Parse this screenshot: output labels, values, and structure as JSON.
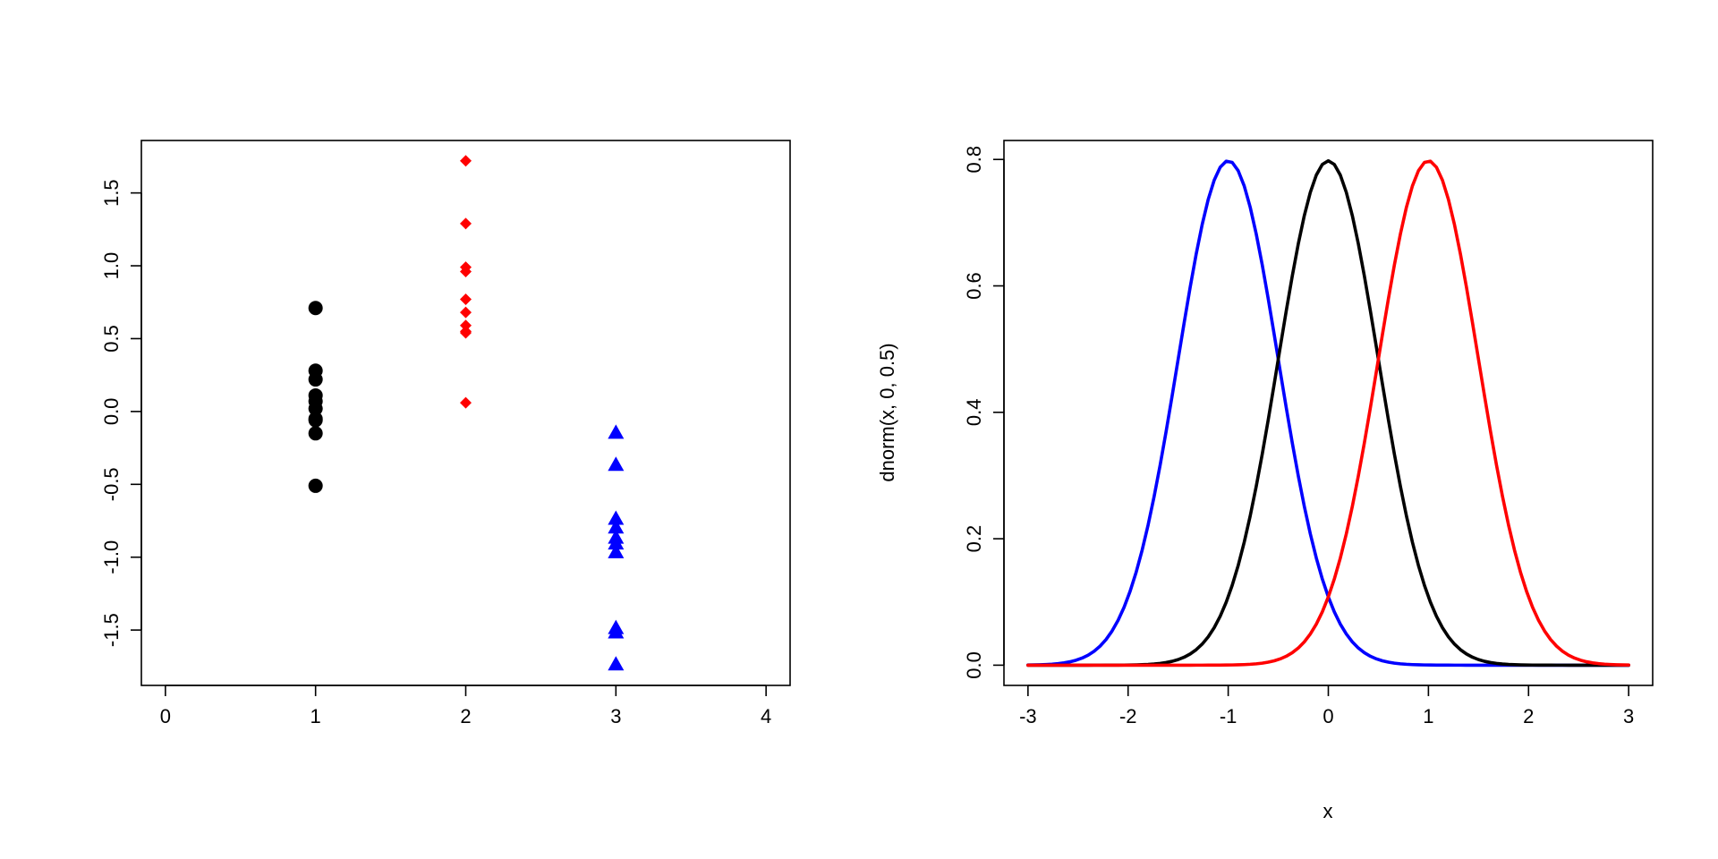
{
  "chart_data": [
    {
      "type": "scatter",
      "title": "",
      "xlabel": "",
      "ylabel": "",
      "xlim": [
        -0.16,
        4.16
      ],
      "ylim": [
        -1.88,
        1.86
      ],
      "xticks": [
        0,
        1,
        2,
        3,
        4
      ],
      "yticks": [
        -1.5,
        -1.0,
        -0.5,
        0.0,
        0.5,
        1.0,
        1.5
      ],
      "xtick_labels": [
        "0",
        "1",
        "2",
        "3",
        "4"
      ],
      "ytick_labels": [
        "-1.5",
        "-1.0",
        "-0.5",
        "0.0",
        "0.5",
        "1.0",
        "1.5"
      ],
      "grid": false,
      "series": [
        {
          "marker": "circle",
          "color": "#000000",
          "x": [
            1,
            1,
            1,
            1,
            1,
            1,
            1,
            1,
            1,
            1
          ],
          "y": [
            0.71,
            0.28,
            0.22,
            0.11,
            0.07,
            0.02,
            -0.05,
            -0.06,
            -0.15,
            -0.51
          ]
        },
        {
          "marker": "diamond",
          "color": "#ff0000",
          "x": [
            2,
            2,
            2,
            2,
            2,
            2,
            2,
            2,
            2,
            2
          ],
          "y": [
            1.72,
            1.29,
            0.99,
            0.96,
            0.77,
            0.68,
            0.59,
            0.54,
            0.55,
            0.06
          ]
        },
        {
          "marker": "triangle",
          "color": "#0000ff",
          "x": [
            3,
            3,
            3,
            3,
            3,
            3,
            3,
            3,
            3,
            3
          ],
          "y": [
            -0.15,
            -0.37,
            -0.74,
            -0.8,
            -0.87,
            -0.91,
            -0.97,
            -1.49,
            -1.52,
            -1.74
          ]
        }
      ]
    },
    {
      "type": "line",
      "title": "",
      "xlabel": "x",
      "ylabel": "dnorm(x, 0, 0.5)",
      "xlim": [
        -3.24,
        3.24
      ],
      "ylim": [
        -0.032,
        0.83
      ],
      "xticks": [
        -3,
        -2,
        -1,
        0,
        1,
        2,
        3
      ],
      "yticks": [
        0.0,
        0.2,
        0.4,
        0.6,
        0.8
      ],
      "xtick_labels": [
        "-3",
        "-2",
        "-1",
        "0",
        "1",
        "2",
        "3"
      ],
      "ytick_labels": [
        "0.0",
        "0.2",
        "0.4",
        "0.6",
        "0.8"
      ],
      "grid": false,
      "series": [
        {
          "function": "dnorm",
          "mean": -1,
          "sd": 0.5,
          "x_from": -3,
          "x_to": 3,
          "color": "#0000ff"
        },
        {
          "function": "dnorm",
          "mean": 0,
          "sd": 0.5,
          "x_from": -3,
          "x_to": 3,
          "color": "#000000"
        },
        {
          "function": "dnorm",
          "mean": 1,
          "sd": 0.5,
          "x_from": -3,
          "x_to": 3,
          "color": "#ff0000"
        }
      ]
    }
  ]
}
